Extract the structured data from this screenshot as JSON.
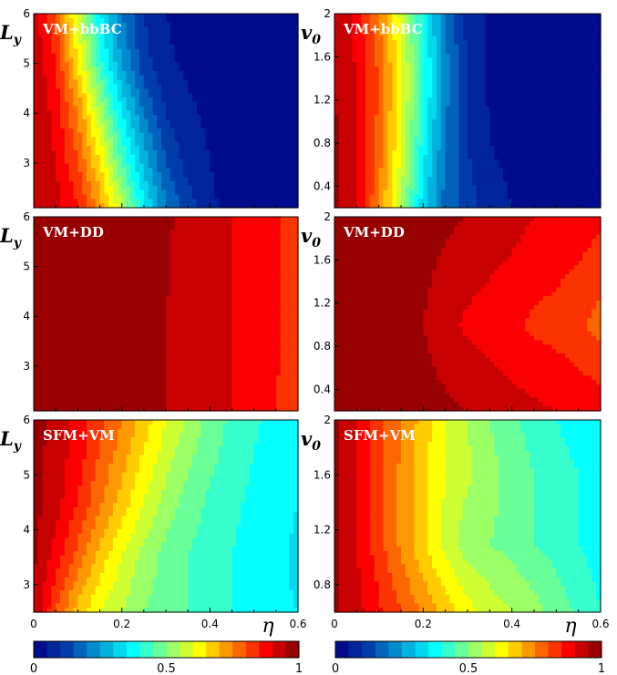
{
  "figure": {
    "row_panel_labels": [
      "VM+bbBC",
      "VM+DD",
      "SFM+VM"
    ]
  },
  "chart_data": [
    {
      "type": "heatmap",
      "panel_label": "VM+bbBC",
      "ylabel": "L_y",
      "xlim": [
        0,
        0.6
      ],
      "ylim": [
        2.1,
        6
      ],
      "yticks": [
        "3",
        "4",
        "5",
        "6"
      ],
      "xticks": [],
      "xlabel": "",
      "color_min": 0,
      "color_max": 1,
      "x": [
        0,
        0.05,
        0.1,
        0.15,
        0.2,
        0.25,
        0.3,
        0.35,
        0.4,
        0.45,
        0.5,
        0.55,
        0.6
      ],
      "rows": [
        {
          "y": 2.2,
          "values": [
            0.95,
            0.92,
            0.85,
            0.72,
            0.55,
            0.35,
            0.2,
            0.12,
            0.06,
            0.03,
            0.02,
            0.02,
            0.02
          ]
        },
        {
          "y": 3.0,
          "values": [
            0.95,
            0.9,
            0.8,
            0.65,
            0.45,
            0.28,
            0.15,
            0.08,
            0.05,
            0.03,
            0.02,
            0.02,
            0.02
          ]
        },
        {
          "y": 4.0,
          "values": [
            0.95,
            0.88,
            0.75,
            0.55,
            0.35,
            0.2,
            0.1,
            0.06,
            0.04,
            0.03,
            0.02,
            0.02,
            0.02
          ]
        },
        {
          "y": 5.0,
          "values": [
            0.94,
            0.85,
            0.65,
            0.42,
            0.25,
            0.12,
            0.06,
            0.04,
            0.03,
            0.02,
            0.02,
            0.02,
            0.02
          ]
        },
        {
          "y": 6.0,
          "values": [
            0.93,
            0.8,
            0.58,
            0.36,
            0.2,
            0.1,
            0.05,
            0.03,
            0.02,
            0.02,
            0.02,
            0.02,
            0.02
          ]
        }
      ]
    },
    {
      "type": "heatmap",
      "panel_label": "VM+bbBC",
      "ylabel": "v_0",
      "xlim": [
        0,
        0.6
      ],
      "ylim": [
        0.2,
        2
      ],
      "yticks": [
        "0.4",
        "0.8",
        "1.2",
        "1.6",
        "2"
      ],
      "xticks": [],
      "xlabel": "",
      "color_min": 0,
      "color_max": 1,
      "x": [
        0,
        0.05,
        0.1,
        0.15,
        0.2,
        0.25,
        0.3,
        0.35,
        0.4,
        0.45,
        0.5,
        0.55,
        0.6
      ],
      "rows": [
        {
          "y": 0.2,
          "values": [
            0.96,
            0.9,
            0.75,
            0.55,
            0.32,
            0.18,
            0.12,
            0.08,
            0.05,
            0.03,
            0.02,
            0.02,
            0.02
          ]
        },
        {
          "y": 0.8,
          "values": [
            0.96,
            0.9,
            0.78,
            0.6,
            0.38,
            0.2,
            0.1,
            0.05,
            0.03,
            0.02,
            0.02,
            0.02,
            0.02
          ]
        },
        {
          "y": 1.4,
          "values": [
            0.95,
            0.9,
            0.8,
            0.62,
            0.42,
            0.22,
            0.1,
            0.04,
            0.03,
            0.02,
            0.02,
            0.02,
            0.02
          ]
        },
        {
          "y": 2.0,
          "values": [
            0.95,
            0.88,
            0.75,
            0.58,
            0.38,
            0.2,
            0.08,
            0.04,
            0.03,
            0.02,
            0.02,
            0.02,
            0.02
          ]
        }
      ]
    },
    {
      "type": "heatmap",
      "panel_label": "VM+DD",
      "ylabel": "L_y",
      "xlim": [
        0,
        0.6
      ],
      "ylim": [
        2.1,
        6
      ],
      "yticks": [
        "3",
        "4",
        "5",
        "6"
      ],
      "xticks": [],
      "xlabel": "",
      "color_min": 0,
      "color_max": 1,
      "x": [
        0,
        0.05,
        0.1,
        0.15,
        0.2,
        0.25,
        0.3,
        0.35,
        0.4,
        0.45,
        0.5,
        0.55,
        0.6
      ],
      "rows": [
        {
          "y": 2.2,
          "values": [
            0.98,
            0.98,
            0.98,
            0.98,
            0.97,
            0.97,
            0.95,
            0.93,
            0.91,
            0.9,
            0.88,
            0.85,
            0.82
          ]
        },
        {
          "y": 4.0,
          "values": [
            0.98,
            0.98,
            0.98,
            0.98,
            0.97,
            0.97,
            0.95,
            0.93,
            0.92,
            0.9,
            0.88,
            0.86,
            0.82
          ]
        },
        {
          "y": 6.0,
          "values": [
            0.98,
            0.98,
            0.98,
            0.98,
            0.97,
            0.97,
            0.96,
            0.93,
            0.92,
            0.9,
            0.88,
            0.86,
            0.8
          ]
        }
      ]
    },
    {
      "type": "heatmap",
      "panel_label": "VM+DD",
      "ylabel": "v_0",
      "xlim": [
        0,
        0.6
      ],
      "ylim": [
        0.2,
        2
      ],
      "yticks": [
        "0.4",
        "0.8",
        "1.2",
        "1.6",
        "2"
      ],
      "xticks": [],
      "xlabel": "",
      "color_min": 0,
      "color_max": 1,
      "x": [
        0,
        0.05,
        0.1,
        0.15,
        0.2,
        0.25,
        0.3,
        0.35,
        0.4,
        0.45,
        0.5,
        0.55,
        0.6
      ],
      "rows": [
        {
          "y": 0.2,
          "values": [
            0.98,
            0.98,
            0.98,
            0.98,
            0.97,
            0.96,
            0.95,
            0.94,
            0.92,
            0.91,
            0.9,
            0.89,
            0.88
          ]
        },
        {
          "y": 1.0,
          "values": [
            0.98,
            0.98,
            0.98,
            0.97,
            0.95,
            0.92,
            0.89,
            0.87,
            0.86,
            0.84,
            0.83,
            0.81,
            0.78
          ]
        },
        {
          "y": 2.0,
          "values": [
            0.98,
            0.98,
            0.98,
            0.98,
            0.97,
            0.96,
            0.95,
            0.94,
            0.92,
            0.9,
            0.89,
            0.88,
            0.86
          ]
        }
      ]
    },
    {
      "type": "heatmap",
      "panel_label": "SFM+VM",
      "ylabel": "L_y",
      "xlim": [
        0,
        0.6
      ],
      "ylim": [
        2.5,
        6
      ],
      "yticks": [
        "3",
        "4",
        "5",
        "6"
      ],
      "xticks": [
        "0",
        "0.2",
        "0.4",
        "0.6"
      ],
      "xlabel": "η",
      "color_min": 0,
      "color_max": 1,
      "x": [
        0,
        0.05,
        0.1,
        0.15,
        0.2,
        0.25,
        0.3,
        0.35,
        0.4,
        0.45,
        0.5,
        0.55,
        0.6
      ],
      "rows": [
        {
          "y": 2.5,
          "values": [
            0.95,
            0.8,
            0.68,
            0.6,
            0.55,
            0.5,
            0.48,
            0.45,
            0.42,
            0.4,
            0.38,
            0.36,
            0.35
          ]
        },
        {
          "y": 3.5,
          "values": [
            0.96,
            0.88,
            0.78,
            0.68,
            0.6,
            0.53,
            0.48,
            0.45,
            0.42,
            0.4,
            0.38,
            0.36,
            0.34
          ]
        },
        {
          "y": 4.5,
          "values": [
            0.97,
            0.92,
            0.85,
            0.76,
            0.68,
            0.6,
            0.53,
            0.48,
            0.44,
            0.41,
            0.39,
            0.37,
            0.35
          ]
        },
        {
          "y": 5.5,
          "values": [
            0.97,
            0.93,
            0.88,
            0.8,
            0.73,
            0.65,
            0.58,
            0.52,
            0.47,
            0.43,
            0.4,
            0.38,
            0.36
          ]
        },
        {
          "y": 6.0,
          "values": [
            0.97,
            0.93,
            0.88,
            0.82,
            0.75,
            0.68,
            0.6,
            0.54,
            0.48,
            0.44,
            0.41,
            0.38,
            0.36
          ]
        }
      ]
    },
    {
      "type": "heatmap",
      "panel_label": "SFM+VM",
      "ylabel": "v_0",
      "xlim": [
        0,
        0.6
      ],
      "ylim": [
        0.6,
        2
      ],
      "yticks": [
        "0.8",
        "1.2",
        "1.6",
        "2"
      ],
      "xticks": [
        "0",
        "0.2",
        "0.4",
        "0.6"
      ],
      "xlabel": "η",
      "color_min": 0,
      "color_max": 1,
      "x": [
        0,
        0.05,
        0.1,
        0.15,
        0.2,
        0.25,
        0.3,
        0.35,
        0.4,
        0.45,
        0.5,
        0.55,
        0.6
      ],
      "rows": [
        {
          "y": 0.6,
          "values": [
            0.96,
            0.92,
            0.86,
            0.8,
            0.74,
            0.68,
            0.62,
            0.58,
            0.55,
            0.52,
            0.48,
            0.44,
            0.4
          ]
        },
        {
          "y": 1.1,
          "values": [
            0.96,
            0.9,
            0.82,
            0.74,
            0.66,
            0.58,
            0.52,
            0.5,
            0.48,
            0.45,
            0.43,
            0.4,
            0.38
          ]
        },
        {
          "y": 1.6,
          "values": [
            0.96,
            0.9,
            0.82,
            0.74,
            0.66,
            0.6,
            0.56,
            0.52,
            0.48,
            0.45,
            0.42,
            0.4,
            0.36
          ]
        },
        {
          "y": 2.0,
          "values": [
            0.96,
            0.9,
            0.82,
            0.75,
            0.68,
            0.6,
            0.55,
            0.5,
            0.46,
            0.43,
            0.4,
            0.38,
            0.35
          ]
        }
      ]
    }
  ],
  "colorbars": [
    {
      "min": 0,
      "max": 1,
      "ticks": [
        "0",
        "0.5",
        "1"
      ],
      "levels": 20
    },
    {
      "min": 0,
      "max": 1,
      "ticks": [
        "0",
        "0.5",
        "1"
      ],
      "levels": 20
    }
  ]
}
